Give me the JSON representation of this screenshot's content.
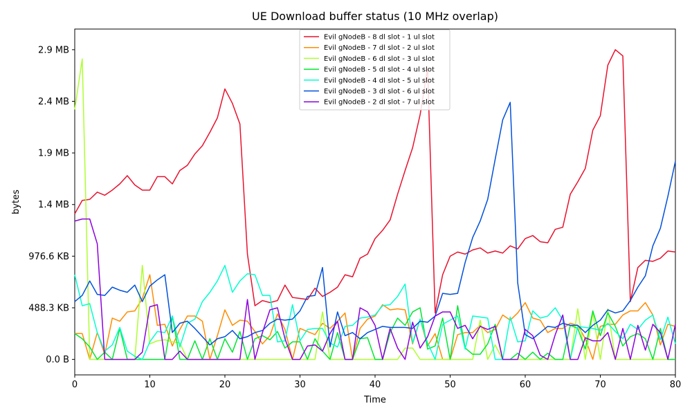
{
  "chart_data": {
    "type": "line",
    "title": "UE Download buffer status (10 MHz overlap)",
    "xlabel": "Time",
    "ylabel": "bytes",
    "xlim": [
      0,
      80
    ],
    "ylim": [
      -150000,
      3200000
    ],
    "xticks": [
      {
        "value": 0,
        "label": "0"
      },
      {
        "value": 10,
        "label": "10"
      },
      {
        "value": 20,
        "label": "20"
      },
      {
        "value": 30,
        "label": "30"
      },
      {
        "value": 40,
        "label": "40"
      },
      {
        "value": 50,
        "label": "50"
      },
      {
        "value": 60,
        "label": "60"
      },
      {
        "value": 70,
        "label": "70"
      },
      {
        "value": 80,
        "label": "80"
      }
    ],
    "yticks": [
      {
        "value": 0,
        "label": "0.0 B"
      },
      {
        "value": 500000,
        "label": "488.3 KB"
      },
      {
        "value": 1000000,
        "label": "976.6 KB"
      },
      {
        "value": 1500000,
        "label": "1.4 MB"
      },
      {
        "value": 2000000,
        "label": "1.9 MB"
      },
      {
        "value": 2500000,
        "label": "2.4 MB"
      },
      {
        "value": 3000000,
        "label": "2.9 MB"
      }
    ],
    "grid": false,
    "legend_position": "top-center",
    "x": [
      0,
      1,
      2,
      3,
      4,
      5,
      6,
      7,
      8,
      9,
      10,
      11,
      12,
      13,
      14,
      15,
      16,
      17,
      18,
      19,
      20,
      21,
      22,
      23,
      24,
      25,
      26,
      27,
      28,
      29,
      30,
      31,
      32,
      33,
      34,
      35,
      36,
      37,
      38,
      39,
      40,
      41,
      42,
      43,
      44,
      45,
      46,
      47,
      48,
      49,
      50,
      51,
      52,
      53,
      54,
      55,
      56,
      57,
      58,
      59,
      60,
      61,
      62,
      63,
      64,
      65,
      66,
      67,
      68,
      69,
      70,
      71,
      72,
      73,
      74,
      75,
      76,
      77,
      78,
      79,
      80
    ],
    "series": [
      {
        "name": "Evil gNodeB - 8 dl slot - 1 ul slot",
        "color": "#e8112d",
        "values": [
          1410000,
          1540000,
          1550000,
          1620000,
          1590000,
          1640000,
          1700000,
          1780000,
          1690000,
          1640000,
          1640000,
          1770000,
          1770000,
          1700000,
          1830000,
          1880000,
          1990000,
          2070000,
          2200000,
          2340000,
          2620000,
          2480000,
          2280000,
          1020000,
          520000,
          570000,
          550000,
          570000,
          720000,
          600000,
          590000,
          580000,
          690000,
          610000,
          650000,
          700000,
          820000,
          800000,
          980000,
          1020000,
          1170000,
          1250000,
          1350000,
          1600000,
          1830000,
          2050000,
          2370000,
          2820000,
          450000,
          820000,
          1000000,
          1040000,
          1020000,
          1060000,
          1080000,
          1030000,
          1050000,
          1030000,
          1100000,
          1070000,
          1170000,
          1200000,
          1140000,
          1130000,
          1260000,
          1280000,
          1600000,
          1720000,
          1850000,
          2220000,
          2360000,
          2850000,
          3000000,
          2940000,
          560000,
          890000,
          960000,
          950000,
          980000,
          1050000,
          1040000
        ]
      },
      {
        "name": "Evil gNodeB - 7 dl slot - 2 ul slot",
        "color": "#ff8c00",
        "values": [
          250000,
          250000,
          0,
          260000,
          50000,
          400000,
          370000,
          460000,
          470000,
          590000,
          820000,
          330000,
          340000,
          130000,
          290000,
          420000,
          420000,
          370000,
          0,
          230000,
          480000,
          330000,
          380000,
          370000,
          270000,
          150000,
          230000,
          440000,
          290000,
          0,
          300000,
          270000,
          240000,
          350000,
          300000,
          370000,
          450000,
          0,
          300000,
          390000,
          420000,
          530000,
          480000,
          490000,
          480000,
          150000,
          390000,
          130000,
          250000,
          0,
          0,
          240000,
          260000,
          260000,
          330000,
          260000,
          290000,
          430000,
          380000,
          450000,
          550000,
          400000,
          380000,
          260000,
          300000,
          300000,
          350000,
          330000,
          200000,
          0,
          320000,
          340000,
          340000,
          430000,
          470000,
          470000,
          550000,
          430000,
          140000,
          340000,
          320000
        ]
      },
      {
        "name": "Evil gNodeB - 6 dl slot - 3 ul slot",
        "color": "#adff2f",
        "values": [
          2420000,
          2910000,
          0,
          0,
          0,
          0,
          0,
          0,
          0,
          910000,
          150000,
          180000,
          190000,
          170000,
          160000,
          0,
          0,
          0,
          0,
          0,
          0,
          0,
          0,
          0,
          0,
          0,
          0,
          0,
          0,
          0,
          0,
          0,
          0,
          460000,
          0,
          0,
          0,
          0,
          0,
          0,
          0,
          0,
          0,
          0,
          110000,
          110000,
          0,
          0,
          0,
          0,
          0,
          0,
          0,
          0,
          380000,
          0,
          140000,
          0,
          0,
          0,
          0,
          0,
          0,
          0,
          0,
          0,
          0,
          490000,
          0,
          450000,
          0,
          490000,
          0,
          0,
          0,
          0,
          0,
          0,
          0,
          0,
          0
        ]
      },
      {
        "name": "Evil gNodeB - 5 dl slot - 4 ul slot",
        "color": "#00e632",
        "values": [
          250000,
          200000,
          120000,
          0,
          70000,
          0,
          300000,
          0,
          0,
          0,
          0,
          0,
          0,
          420000,
          0,
          0,
          180000,
          0,
          200000,
          0,
          200000,
          70000,
          270000,
          0,
          200000,
          230000,
          190000,
          270000,
          110000,
          170000,
          170000,
          0,
          200000,
          80000,
          0,
          260000,
          0,
          0,
          200000,
          210000,
          0,
          0,
          260000,
          400000,
          330000,
          460000,
          500000,
          100000,
          130000,
          400000,
          0,
          520000,
          110000,
          50000,
          50000,
          150000,
          340000,
          0,
          0,
          60000,
          0,
          70000,
          0,
          60000,
          0,
          0,
          330000,
          300000,
          100000,
          470000,
          230000,
          450000,
          320000,
          130000,
          220000,
          250000,
          200000,
          0,
          300000,
          0,
          0
        ]
      },
      {
        "name": "Evil gNodeB - 4 dl slot - 5 ul slot",
        "color": "#00ffd0",
        "values": [
          820000,
          520000,
          540000,
          260000,
          80000,
          140000,
          310000,
          80000,
          30000,
          0,
          170000,
          270000,
          260000,
          420000,
          120000,
          350000,
          390000,
          560000,
          650000,
          760000,
          910000,
          650000,
          760000,
          830000,
          820000,
          620000,
          620000,
          170000,
          180000,
          530000,
          180000,
          290000,
          300000,
          300000,
          160000,
          120000,
          320000,
          330000,
          400000,
          410000,
          430000,
          520000,
          530000,
          610000,
          730000,
          160000,
          390000,
          160000,
          0,
          340000,
          380000,
          420000,
          100000,
          420000,
          410000,
          400000,
          0,
          0,
          410000,
          170000,
          180000,
          470000,
          400000,
          420000,
          500000,
          380000,
          0,
          320000,
          310000,
          300000,
          280000,
          350000,
          270000,
          200000,
          340000,
          290000,
          380000,
          430000,
          190000,
          410000,
          150000
        ]
      },
      {
        "name": "Evil gNodeB - 3 dl slot - 6 ul slot",
        "color": "#0050dc",
        "values": [
          560000,
          620000,
          760000,
          630000,
          620000,
          700000,
          670000,
          650000,
          720000,
          560000,
          710000,
          770000,
          820000,
          260000,
          350000,
          370000,
          300000,
          220000,
          140000,
          200000,
          220000,
          280000,
          200000,
          220000,
          260000,
          280000,
          350000,
          390000,
          380000,
          390000,
          470000,
          610000,
          620000,
          890000,
          120000,
          460000,
          230000,
          260000,
          200000,
          260000,
          290000,
          320000,
          310000,
          310000,
          310000,
          300000,
          370000,
          360000,
          420000,
          640000,
          630000,
          640000,
          940000,
          1180000,
          1340000,
          1550000,
          1940000,
          2320000,
          2490000,
          740000,
          240000,
          200000,
          260000,
          320000,
          310000,
          350000,
          330000,
          330000,
          260000,
          330000,
          380000,
          480000,
          450000,
          470000,
          570000,
          700000,
          810000,
          1100000,
          1270000,
          1580000,
          1920000
        ]
      },
      {
        "name": "Evil gNodeB - 2 dl slot - 7 ul slot",
        "color": "#8c00dc",
        "values": [
          1340000,
          1360000,
          1360000,
          1120000,
          0,
          0,
          0,
          0,
          0,
          70000,
          510000,
          530000,
          0,
          0,
          80000,
          0,
          0,
          0,
          0,
          0,
          0,
          0,
          0,
          580000,
          0,
          260000,
          480000,
          500000,
          200000,
          0,
          0,
          130000,
          140000,
          80000,
          250000,
          370000,
          0,
          0,
          500000,
          460000,
          330000,
          0,
          300000,
          110000,
          0,
          360000,
          110000,
          220000,
          420000,
          460000,
          460000,
          300000,
          330000,
          200000,
          320000,
          290000,
          320000,
          0,
          0,
          0,
          290000,
          230000,
          40000,
          0,
          240000,
          430000,
          0,
          0,
          210000,
          180000,
          180000,
          260000,
          0,
          300000,
          0,
          330000,
          90000,
          340000,
          260000,
          0,
          340000
        ]
      }
    ]
  }
}
